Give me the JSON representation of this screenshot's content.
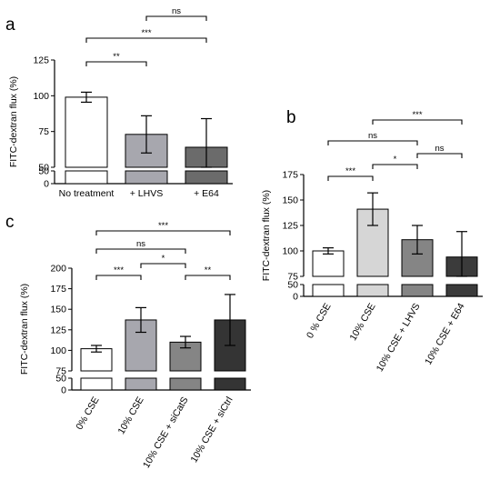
{
  "chart_data": [
    {
      "panel": "a",
      "type": "bar",
      "ylabel": "FITC-dextran flux (%)",
      "categories": [
        "No treatment",
        "+ LHVS",
        "+ E64"
      ],
      "values": [
        99,
        73,
        64
      ],
      "errors": [
        3.5,
        13,
        20
      ],
      "colors": [
        "#ffffff",
        "#a7a7ae",
        "#6b6b6b"
      ],
      "y_ticks_lower": [
        0,
        50
      ],
      "y_ticks_upper": [
        50,
        75,
        100,
        125
      ],
      "y_axis_break": [
        50,
        50
      ],
      "significance": [
        {
          "from": 0,
          "to": 1,
          "label": "**"
        },
        {
          "from": 0,
          "to": 2,
          "label": "***"
        },
        {
          "from": 1,
          "to": 2,
          "label": "ns"
        }
      ]
    },
    {
      "panel": "b",
      "type": "bar",
      "ylabel": "FITC-dextran flux (%)",
      "categories": [
        "0 % CSE",
        "10% CSE",
        "10% CSE + LHVS",
        "10% CSE + E64"
      ],
      "values": [
        100,
        141,
        111,
        94
      ],
      "errors": [
        3,
        16,
        14,
        25
      ],
      "colors": [
        "#ffffff",
        "#d6d6d6",
        "#858585",
        "#3b3b3b"
      ],
      "y_ticks_lower": [
        0,
        50
      ],
      "y_ticks_upper": [
        75,
        100,
        125,
        150,
        175
      ],
      "y_axis_break": [
        50,
        75
      ],
      "significance": [
        {
          "from": 0,
          "to": 1,
          "label": "***"
        },
        {
          "from": 1,
          "to": 2,
          "label": "*"
        },
        {
          "from": 2,
          "to": 3,
          "label": "ns"
        },
        {
          "from": 0,
          "to": 2,
          "label": "ns"
        },
        {
          "from": 1,
          "to": 3,
          "label": "***"
        }
      ]
    },
    {
      "panel": "c",
      "type": "bar",
      "ylabel": "FITC-dextran flux (%)",
      "categories": [
        "0% CSE",
        "10% CSE",
        "10% CSE + siCatS",
        "10% CSE + siCtrl"
      ],
      "values": [
        102,
        137,
        110,
        137
      ],
      "errors": [
        4,
        15,
        7,
        31
      ],
      "colors": [
        "#ffffff",
        "#a7a7ae",
        "#858585",
        "#343434"
      ],
      "y_ticks_lower": [
        0,
        50
      ],
      "y_ticks_upper": [
        75,
        100,
        125,
        150,
        175,
        200
      ],
      "y_axis_break": [
        50,
        75
      ],
      "significance": [
        {
          "from": 0,
          "to": 1,
          "label": "***"
        },
        {
          "from": 1,
          "to": 2,
          "label": "*"
        },
        {
          "from": 2,
          "to": 3,
          "label": "**"
        },
        {
          "from": 0,
          "to": 2,
          "label": "ns"
        },
        {
          "from": 0,
          "to": 3,
          "label": "***"
        }
      ]
    }
  ]
}
